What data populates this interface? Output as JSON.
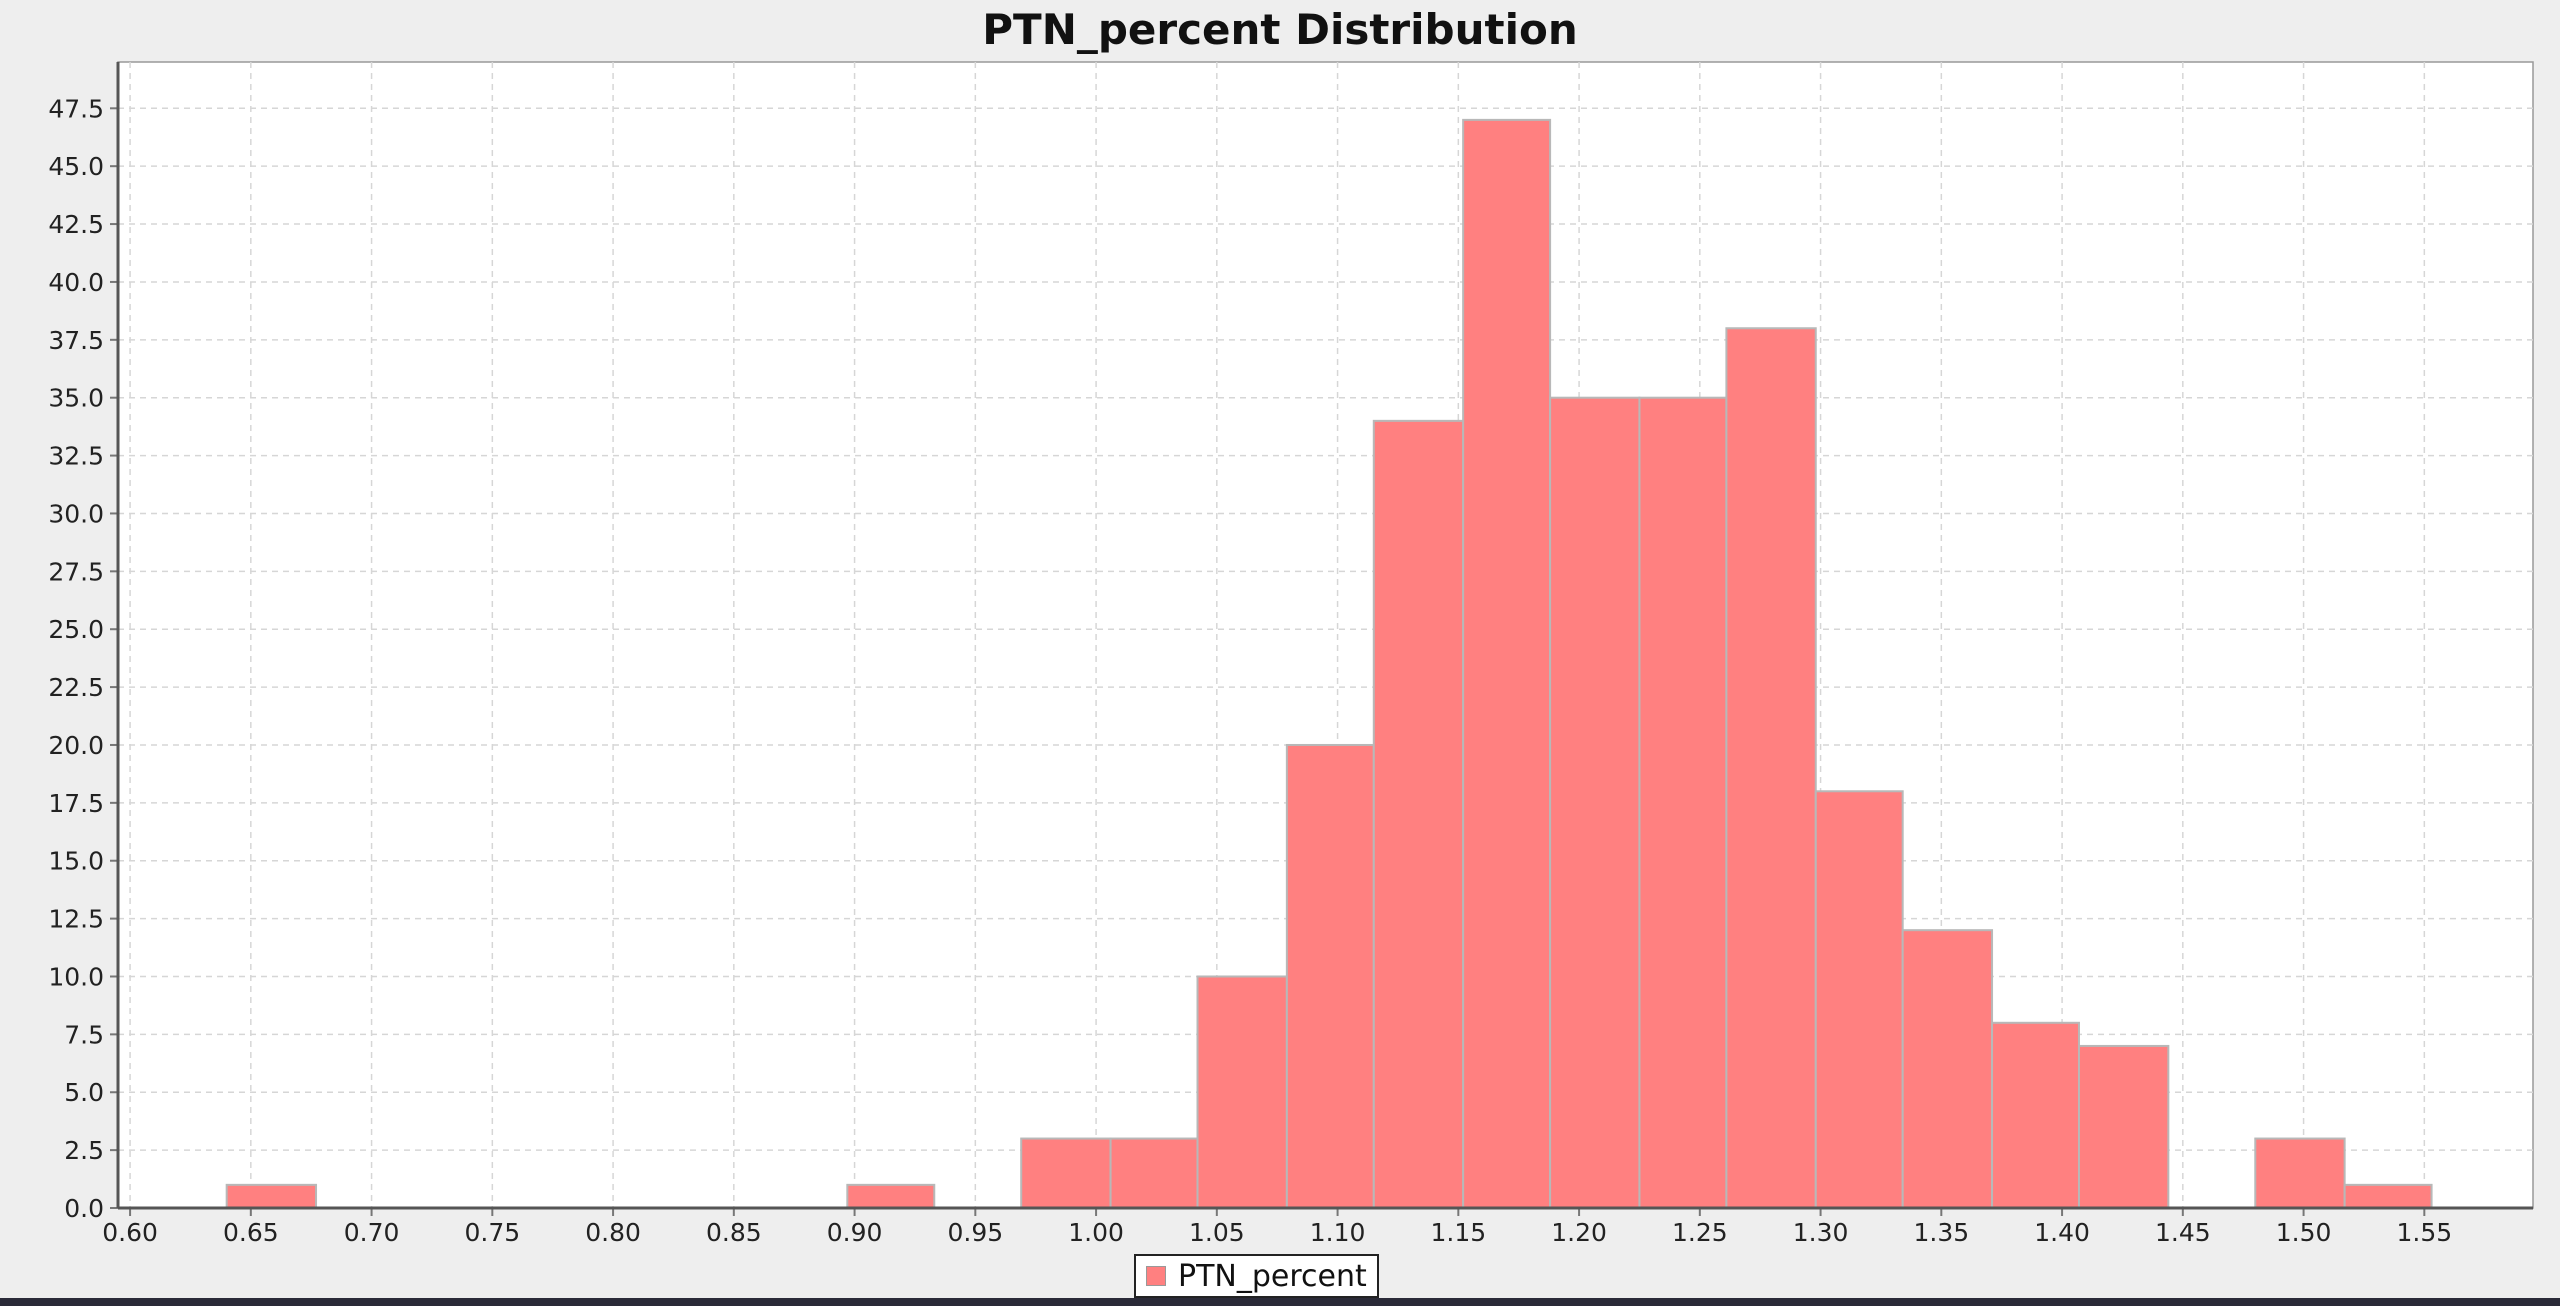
{
  "chart_data": {
    "type": "bar",
    "title": "PTN_percent Distribution",
    "xlabel": "",
    "ylabel": "",
    "xlim": [
      0.595,
      1.595
    ],
    "ylim": [
      0,
      49.5
    ],
    "x_ticks": [
      "0.60",
      "0.65",
      "0.70",
      "0.75",
      "0.80",
      "0.85",
      "0.90",
      "0.95",
      "1.00",
      "1.05",
      "1.10",
      "1.15",
      "1.20",
      "1.25",
      "1.30",
      "1.35",
      "1.40",
      "1.45",
      "1.50",
      "1.55"
    ],
    "y_ticks": [
      "0.0",
      "2.5",
      "5.0",
      "7.5",
      "10.0",
      "12.5",
      "15.0",
      "17.5",
      "20.0",
      "22.5",
      "25.0",
      "27.5",
      "30.0",
      "32.5",
      "35.0",
      "37.5",
      "40.0",
      "42.5",
      "45.0",
      "47.5"
    ],
    "grid": true,
    "legend_position": "bottom",
    "series": [
      {
        "name": "PTN_percent",
        "color": "#ff8080",
        "bins": [
          {
            "x0": 0.64,
            "x1": 0.677,
            "count": 1
          },
          {
            "x0": 0.897,
            "x1": 0.933,
            "count": 1
          },
          {
            "x0": 0.969,
            "x1": 1.006,
            "count": 3
          },
          {
            "x0": 1.006,
            "x1": 1.042,
            "count": 3
          },
          {
            "x0": 1.042,
            "x1": 1.079,
            "count": 10
          },
          {
            "x0": 1.079,
            "x1": 1.115,
            "count": 20
          },
          {
            "x0": 1.115,
            "x1": 1.152,
            "count": 34
          },
          {
            "x0": 1.152,
            "x1": 1.188,
            "count": 47
          },
          {
            "x0": 1.188,
            "x1": 1.225,
            "count": 35
          },
          {
            "x0": 1.225,
            "x1": 1.261,
            "count": 35
          },
          {
            "x0": 1.261,
            "x1": 1.298,
            "count": 38
          },
          {
            "x0": 1.298,
            "x1": 1.334,
            "count": 18
          },
          {
            "x0": 1.334,
            "x1": 1.371,
            "count": 12
          },
          {
            "x0": 1.371,
            "x1": 1.407,
            "count": 8
          },
          {
            "x0": 1.407,
            "x1": 1.444,
            "count": 7
          },
          {
            "x0": 1.48,
            "x1": 1.517,
            "count": 3
          },
          {
            "x0": 1.517,
            "x1": 1.553,
            "count": 1
          }
        ]
      }
    ]
  }
}
